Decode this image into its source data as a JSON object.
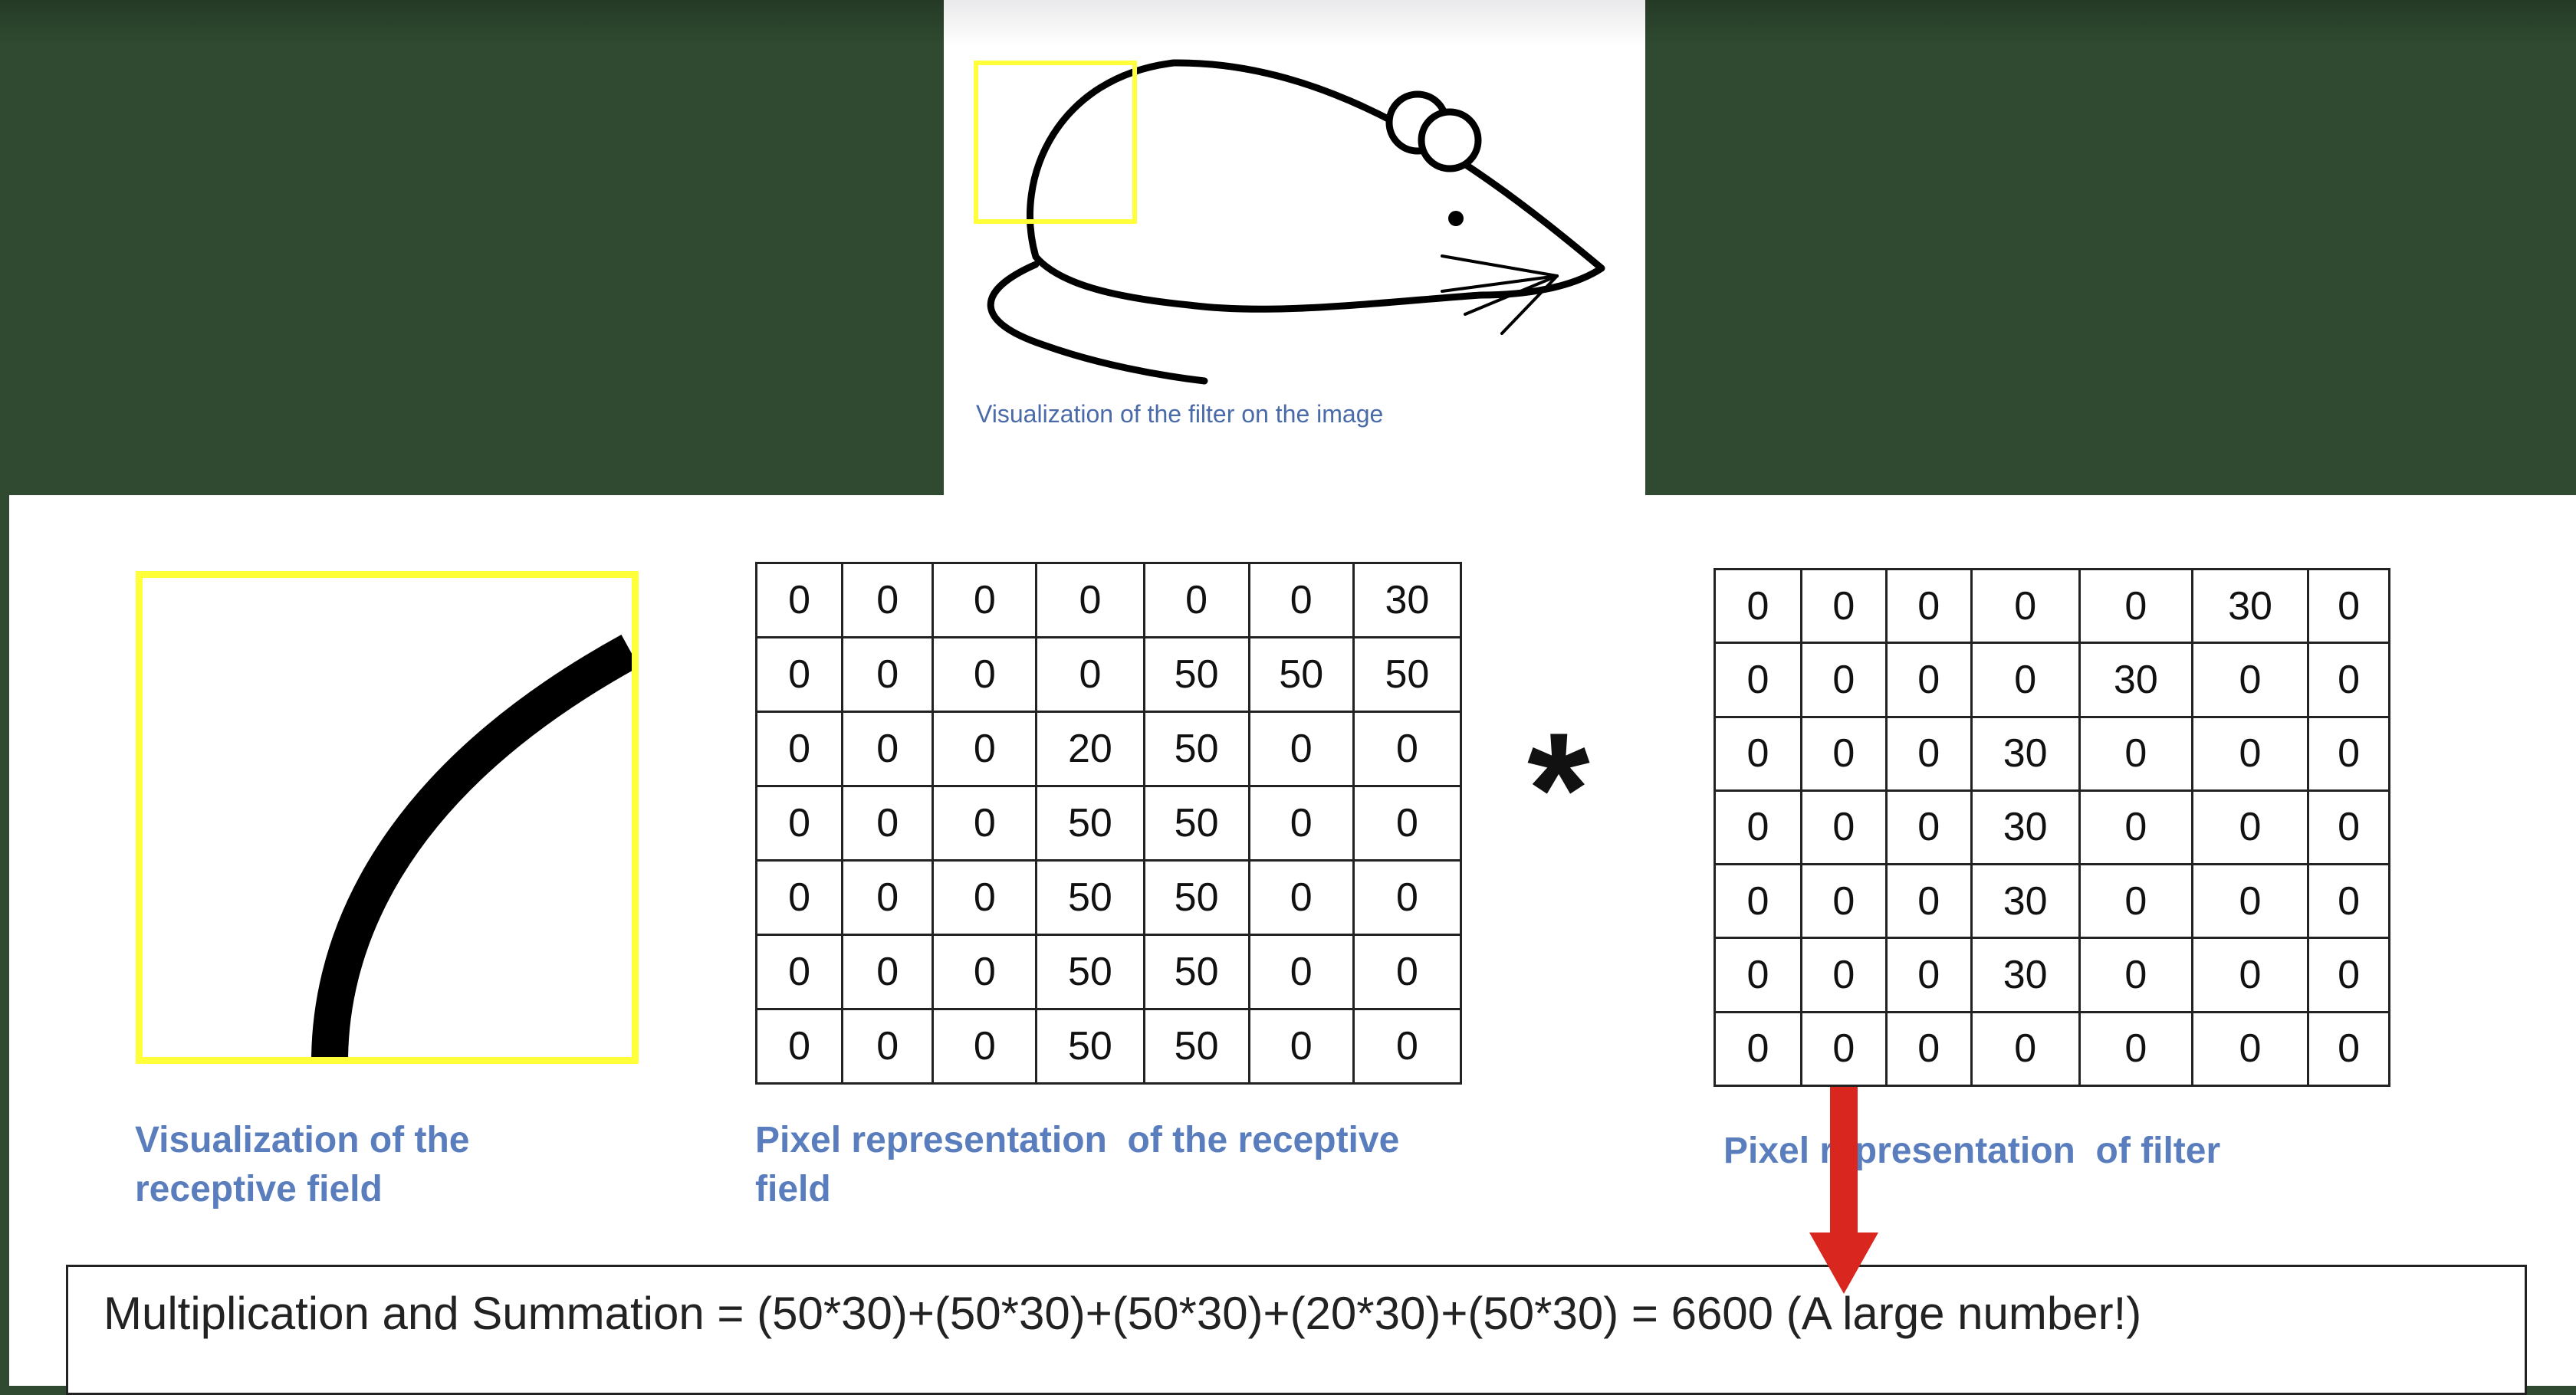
{
  "mouse_panel": {
    "caption": "Visualization of the filter on the image"
  },
  "receptive_field": {
    "caption": "Visualization of the\nreceptive field"
  },
  "pixel_receptive": {
    "caption": "Pixel representation  of the receptive\nfield",
    "rows": [
      [
        "0",
        "0",
        "0",
        "0",
        "0",
        "0",
        "30"
      ],
      [
        "0",
        "0",
        "0",
        "0",
        "50",
        "50",
        "50"
      ],
      [
        "0",
        "0",
        "0",
        "20",
        "50",
        "0",
        "0"
      ],
      [
        "0",
        "0",
        "0",
        "50",
        "50",
        "0",
        "0"
      ],
      [
        "0",
        "0",
        "0",
        "50",
        "50",
        "0",
        "0"
      ],
      [
        "0",
        "0",
        "0",
        "50",
        "50",
        "0",
        "0"
      ],
      [
        "0",
        "0",
        "0",
        "50",
        "50",
        "0",
        "0"
      ]
    ]
  },
  "operator": "*",
  "pixel_filter": {
    "caption": "Pixel representation  of filter",
    "rows": [
      [
        "0",
        "0",
        "0",
        "0",
        "0",
        "30",
        "0"
      ],
      [
        "0",
        "0",
        "0",
        "0",
        "30",
        "0",
        "0"
      ],
      [
        "0",
        "0",
        "0",
        "30",
        "0",
        "0",
        "0"
      ],
      [
        "0",
        "0",
        "0",
        "30",
        "0",
        "0",
        "0"
      ],
      [
        "0",
        "0",
        "0",
        "30",
        "0",
        "0",
        "0"
      ],
      [
        "0",
        "0",
        "0",
        "30",
        "0",
        "0",
        "0"
      ],
      [
        "0",
        "0",
        "0",
        "0",
        "0",
        "0",
        "0"
      ]
    ]
  },
  "formula": "Multiplication and Summation = (50*30)+(50*30)+(50*30)+(20*30)+(50*30) = 6600 (A large number!)",
  "colors": {
    "background": "#2f4a30",
    "highlight_box": "#ffff3a",
    "caption_text": "#5a7ebd",
    "arrow": "#d9261f"
  }
}
